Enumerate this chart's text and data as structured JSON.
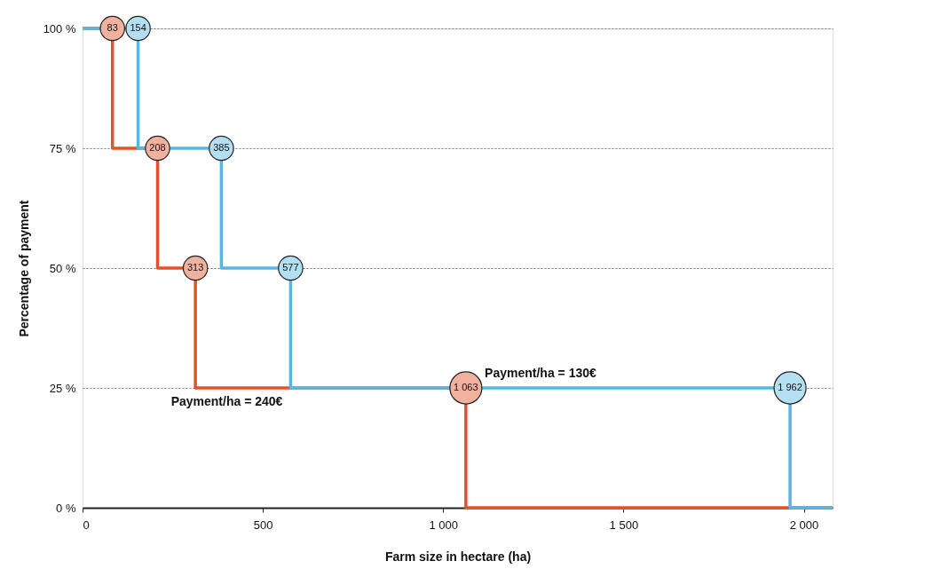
{
  "chart_data": {
    "type": "step",
    "xlabel": "Farm size in hectare (ha)",
    "ylabel": "Percentage of payment",
    "series": [
      {
        "color": "#e0532a",
        "x": [
          0,
          83,
          208,
          313,
          1063,
          2080
        ],
        "values": [
          100,
          100,
          75,
          50,
          25,
          0
        ]
      },
      {
        "color": "#5ab6e0",
        "x": [
          0,
          154,
          385,
          577,
          1962,
          2080
        ],
        "values": [
          100,
          100,
          75,
          50,
          25,
          0
        ]
      }
    ],
    "xlim": [
      0,
      2080
    ],
    "xticks": [
      0,
      500,
      {
        "value": 1000,
        "label": "1 000"
      },
      {
        "value": 1500,
        "label": "1 500"
      },
      {
        "value": 2000,
        "label": "2 000"
      }
    ],
    "ylim": [
      0,
      100
    ],
    "yticks": [
      {
        "value": 0,
        "label": "0 %"
      },
      {
        "value": 25,
        "label": "25 %"
      },
      {
        "value": 50,
        "label": "50 %"
      },
      {
        "value": 75,
        "label": "75 %"
      },
      {
        "value": 100,
        "label": "100 %"
      }
    ],
    "grid": "y",
    "legend": false,
    "marker": "circle",
    "line_style": "solid",
    "annotations": [
      {
        "text": "83",
        "x": 83,
        "y": 100
      },
      {
        "text": "208",
        "x": 208,
        "y": 75
      },
      {
        "text": "313",
        "x": 313,
        "y": 50
      },
      {
        "text": "1 063",
        "x": 1063,
        "y": 25
      },
      {
        "text": "154",
        "x": 154,
        "y": 100
      },
      {
        "text": "385",
        "x": 385,
        "y": 75
      },
      {
        "text": "577",
        "x": 577,
        "y": 50
      },
      {
        "text": "1 962",
        "x": 1962,
        "y": 25
      },
      {
        "text": "Payment/ha = 130€",
        "x": 1270,
        "y": 25
      },
      {
        "text": "Payment/ha = 240€",
        "x": 400,
        "y": 25
      }
    ]
  }
}
